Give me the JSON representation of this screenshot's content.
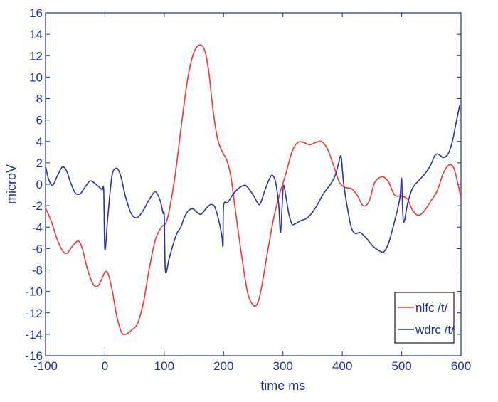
{
  "chart_data": {
    "type": "line",
    "title": "",
    "xlabel": "time ms",
    "ylabel": "microV",
    "xlim": [
      -100,
      600
    ],
    "ylim": [
      -16,
      16
    ],
    "xticks": [
      -100,
      0,
      100,
      200,
      300,
      400,
      500,
      600
    ],
    "yticks": [
      -16,
      -14,
      -12,
      -10,
      -8,
      -6,
      -4,
      -2,
      0,
      2,
      4,
      6,
      8,
      10,
      12,
      14,
      16
    ],
    "grid": false,
    "legend_position": "bottom-right",
    "series": [
      {
        "name": "nlfc /t/",
        "color": "#e8393a",
        "points": [
          [
            -100,
            -2.2
          ],
          [
            -90,
            -3.5
          ],
          [
            -80,
            -5.2
          ],
          [
            -70,
            -6.3
          ],
          [
            -63,
            -6.4
          ],
          [
            -55,
            -5.8
          ],
          [
            -45,
            -5.3
          ],
          [
            -38,
            -6.0
          ],
          [
            -30,
            -7.8
          ],
          [
            -20,
            -9.3
          ],
          [
            -12,
            -9.5
          ],
          [
            -5,
            -8.8
          ],
          [
            0,
            -8.2
          ],
          [
            5,
            -8.3
          ],
          [
            12,
            -9.8
          ],
          [
            20,
            -12.3
          ],
          [
            28,
            -13.8
          ],
          [
            35,
            -14.0
          ],
          [
            45,
            -13.6
          ],
          [
            55,
            -13.0
          ],
          [
            65,
            -11.0
          ],
          [
            75,
            -7.8
          ],
          [
            85,
            -5.2
          ],
          [
            95,
            -4.0
          ],
          [
            103,
            -3.6
          ],
          [
            110,
            -2.0
          ],
          [
            120,
            1.5
          ],
          [
            130,
            6.0
          ],
          [
            140,
            10.0
          ],
          [
            150,
            12.3
          ],
          [
            160,
            13.0
          ],
          [
            168,
            12.5
          ],
          [
            175,
            10.5
          ],
          [
            182,
            7.0
          ],
          [
            190,
            4.2
          ],
          [
            198,
            3.0
          ],
          [
            205,
            2.3
          ],
          [
            212,
            0.8
          ],
          [
            220,
            -2.5
          ],
          [
            230,
            -6.5
          ],
          [
            240,
            -10.0
          ],
          [
            250,
            -11.3
          ],
          [
            258,
            -11.0
          ],
          [
            265,
            -9.3
          ],
          [
            275,
            -6.0
          ],
          [
            285,
            -3.0
          ],
          [
            295,
            -0.8
          ],
          [
            305,
            1.0
          ],
          [
            315,
            3.0
          ],
          [
            325,
            3.9
          ],
          [
            335,
            3.9
          ],
          [
            345,
            3.7
          ],
          [
            355,
            3.9
          ],
          [
            365,
            4.0
          ],
          [
            375,
            3.3
          ],
          [
            385,
            1.8
          ],
          [
            395,
            0.2
          ],
          [
            405,
            -0.3
          ],
          [
            415,
            -0.4
          ],
          [
            425,
            -1.0
          ],
          [
            435,
            -2.0
          ],
          [
            445,
            -1.6
          ],
          [
            455,
            0.2
          ],
          [
            468,
            0.7
          ],
          [
            478,
            0.2
          ],
          [
            488,
            -1.0
          ],
          [
            500,
            -1.1
          ],
          [
            510,
            -1.4
          ],
          [
            518,
            -2.4
          ],
          [
            528,
            -2.9
          ],
          [
            538,
            -2.5
          ],
          [
            550,
            -1.5
          ],
          [
            560,
            -0.6
          ],
          [
            570,
            1.0
          ],
          [
            580,
            1.8
          ],
          [
            588,
            1.5
          ],
          [
            595,
            0.0
          ],
          [
            600,
            -1.3
          ]
        ]
      },
      {
        "name": "wdrc /t/",
        "color": "#2c33a0",
        "points": [
          [
            -100,
            1.7
          ],
          [
            -95,
            0.5
          ],
          [
            -88,
            -0.1
          ],
          [
            -80,
            0.8
          ],
          [
            -72,
            1.6
          ],
          [
            -65,
            1.3
          ],
          [
            -58,
            0.2
          ],
          [
            -50,
            -0.8
          ],
          [
            -42,
            -0.9
          ],
          [
            -35,
            -0.4
          ],
          [
            -25,
            0.3
          ],
          [
            -15,
            0.0
          ],
          [
            -5,
            -0.5
          ],
          [
            -2,
            -0.6
          ],
          [
            0,
            -6.1
          ],
          [
            5,
            -3.0
          ],
          [
            12,
            0.8
          ],
          [
            20,
            1.5
          ],
          [
            27,
            0.7
          ],
          [
            35,
            -1.2
          ],
          [
            45,
            -2.8
          ],
          [
            55,
            -3.1
          ],
          [
            65,
            -2.4
          ],
          [
            75,
            -1.4
          ],
          [
            85,
            -0.7
          ],
          [
            93,
            -1.5
          ],
          [
            98,
            -2.7
          ],
          [
            100,
            -3.0
          ],
          [
            102,
            -8.1
          ],
          [
            108,
            -7.0
          ],
          [
            115,
            -5.6
          ],
          [
            122,
            -4.5
          ],
          [
            128,
            -4.0
          ],
          [
            133,
            -3.2
          ],
          [
            140,
            -2.5
          ],
          [
            148,
            -2.3
          ],
          [
            155,
            -2.6
          ],
          [
            162,
            -2.8
          ],
          [
            170,
            -2.3
          ],
          [
            178,
            -1.9
          ],
          [
            185,
            -2.1
          ],
          [
            192,
            -3.4
          ],
          [
            197,
            -4.8
          ],
          [
            199,
            -5.7
          ],
          [
            200,
            -2.0
          ],
          [
            207,
            -1.7
          ],
          [
            215,
            -1.0
          ],
          [
            223,
            -0.5
          ],
          [
            230,
            -0.2
          ],
          [
            237,
            -0.1
          ],
          [
            245,
            -0.6
          ],
          [
            252,
            -1.2
          ],
          [
            258,
            -1.8
          ],
          [
            262,
            -1.8
          ],
          [
            270,
            -0.5
          ],
          [
            278,
            0.6
          ],
          [
            283,
            0.8
          ],
          [
            288,
            0.1
          ],
          [
            293,
            -2.0
          ],
          [
            296,
            -4.5
          ],
          [
            300,
            -0.6
          ],
          [
            302,
            -0.2
          ],
          [
            306,
            -1.5
          ],
          [
            310,
            -2.8
          ],
          [
            315,
            -3.7
          ],
          [
            320,
            -3.7
          ],
          [
            330,
            -3.4
          ],
          [
            342,
            -3.1
          ],
          [
            355,
            -2.2
          ],
          [
            368,
            -0.9
          ],
          [
            380,
            0.0
          ],
          [
            388,
            0.8
          ],
          [
            394,
            2.0
          ],
          [
            398,
            2.6
          ],
          [
            402,
            0.2
          ],
          [
            408,
            -2.0
          ],
          [
            415,
            -4.0
          ],
          [
            422,
            -4.6
          ],
          [
            430,
            -4.5
          ],
          [
            440,
            -5.0
          ],
          [
            452,
            -5.8
          ],
          [
            462,
            -6.2
          ],
          [
            470,
            -6.3
          ],
          [
            478,
            -5.5
          ],
          [
            486,
            -3.9
          ],
          [
            492,
            -2.6
          ],
          [
            496,
            -1.6
          ],
          [
            498,
            -0.8
          ],
          [
            500,
            0.5
          ],
          [
            503,
            -3.5
          ],
          [
            510,
            -1.8
          ],
          [
            518,
            -0.4
          ],
          [
            528,
            0.3
          ],
          [
            538,
            0.9
          ],
          [
            548,
            1.7
          ],
          [
            556,
            2.7
          ],
          [
            562,
            2.8
          ],
          [
            570,
            2.5
          ],
          [
            578,
            2.8
          ],
          [
            585,
            3.9
          ],
          [
            592,
            5.8
          ],
          [
            598,
            7.4
          ]
        ]
      }
    ]
  }
}
